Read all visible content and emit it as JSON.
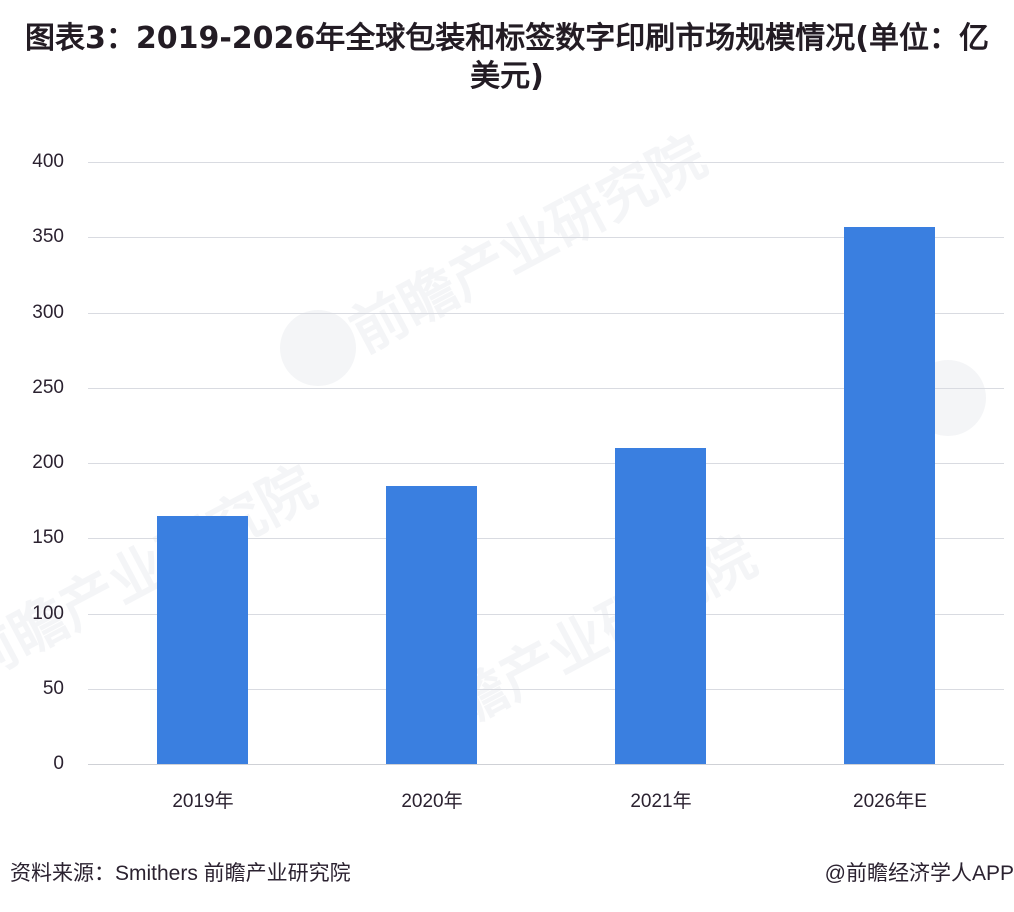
{
  "title": "图表3：2019-2026年全球包装和标签数字印刷市场规模情况(单位：亿美元)",
  "footer": {
    "source": "资料来源：Smithers 前瞻产业研究院",
    "credit": "@前瞻经济学人APP"
  },
  "watermark": {
    "text": "前瞻产业研究院"
  },
  "colors": {
    "bar": "#3a7fe0",
    "grid": "#d9dbe1",
    "text": "#2b2230"
  },
  "chart_data": {
    "type": "bar",
    "title": "图表3：2019-2026年全球包装和标签数字印刷市场规模情况(单位：亿美元)",
    "xlabel": "",
    "ylabel": "",
    "unit": "亿美元",
    "categories": [
      "2019年",
      "2020年",
      "2021年",
      "2026年E"
    ],
    "values": [
      165,
      185,
      210,
      357
    ],
    "ylim": [
      0,
      400
    ],
    "yticks": [
      0,
      50,
      100,
      150,
      200,
      250,
      300,
      350,
      400
    ],
    "grid": true,
    "legend": "none",
    "source": "Smithers 前瞻产业研究院"
  }
}
